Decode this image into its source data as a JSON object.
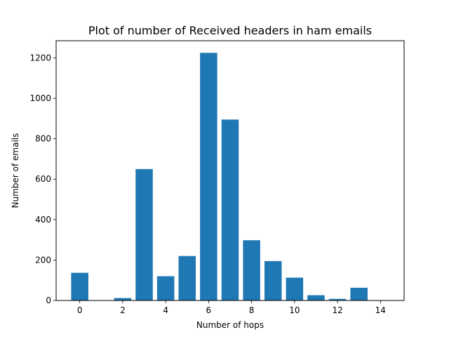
{
  "chart_data": {
    "type": "bar",
    "title": "Plot of number of Received headers in ham emails",
    "xlabel": "Number of hops",
    "ylabel": "Number of emails",
    "x": [
      0,
      1,
      2,
      3,
      4,
      5,
      6,
      7,
      8,
      9,
      10,
      11,
      12,
      13,
      14
    ],
    "values": [
      137,
      0,
      12,
      650,
      120,
      220,
      1225,
      895,
      298,
      195,
      113,
      26,
      8,
      63,
      2
    ],
    "xticks": [
      0,
      2,
      4,
      6,
      8,
      10,
      12,
      14
    ],
    "yticks": [
      0,
      200,
      400,
      600,
      800,
      1000,
      1200
    ],
    "xlim": [
      -1.1,
      15.1
    ],
    "ylim": [
      0,
      1285
    ],
    "bar_color": "#1f77b4",
    "grid": false,
    "legend": "none"
  }
}
